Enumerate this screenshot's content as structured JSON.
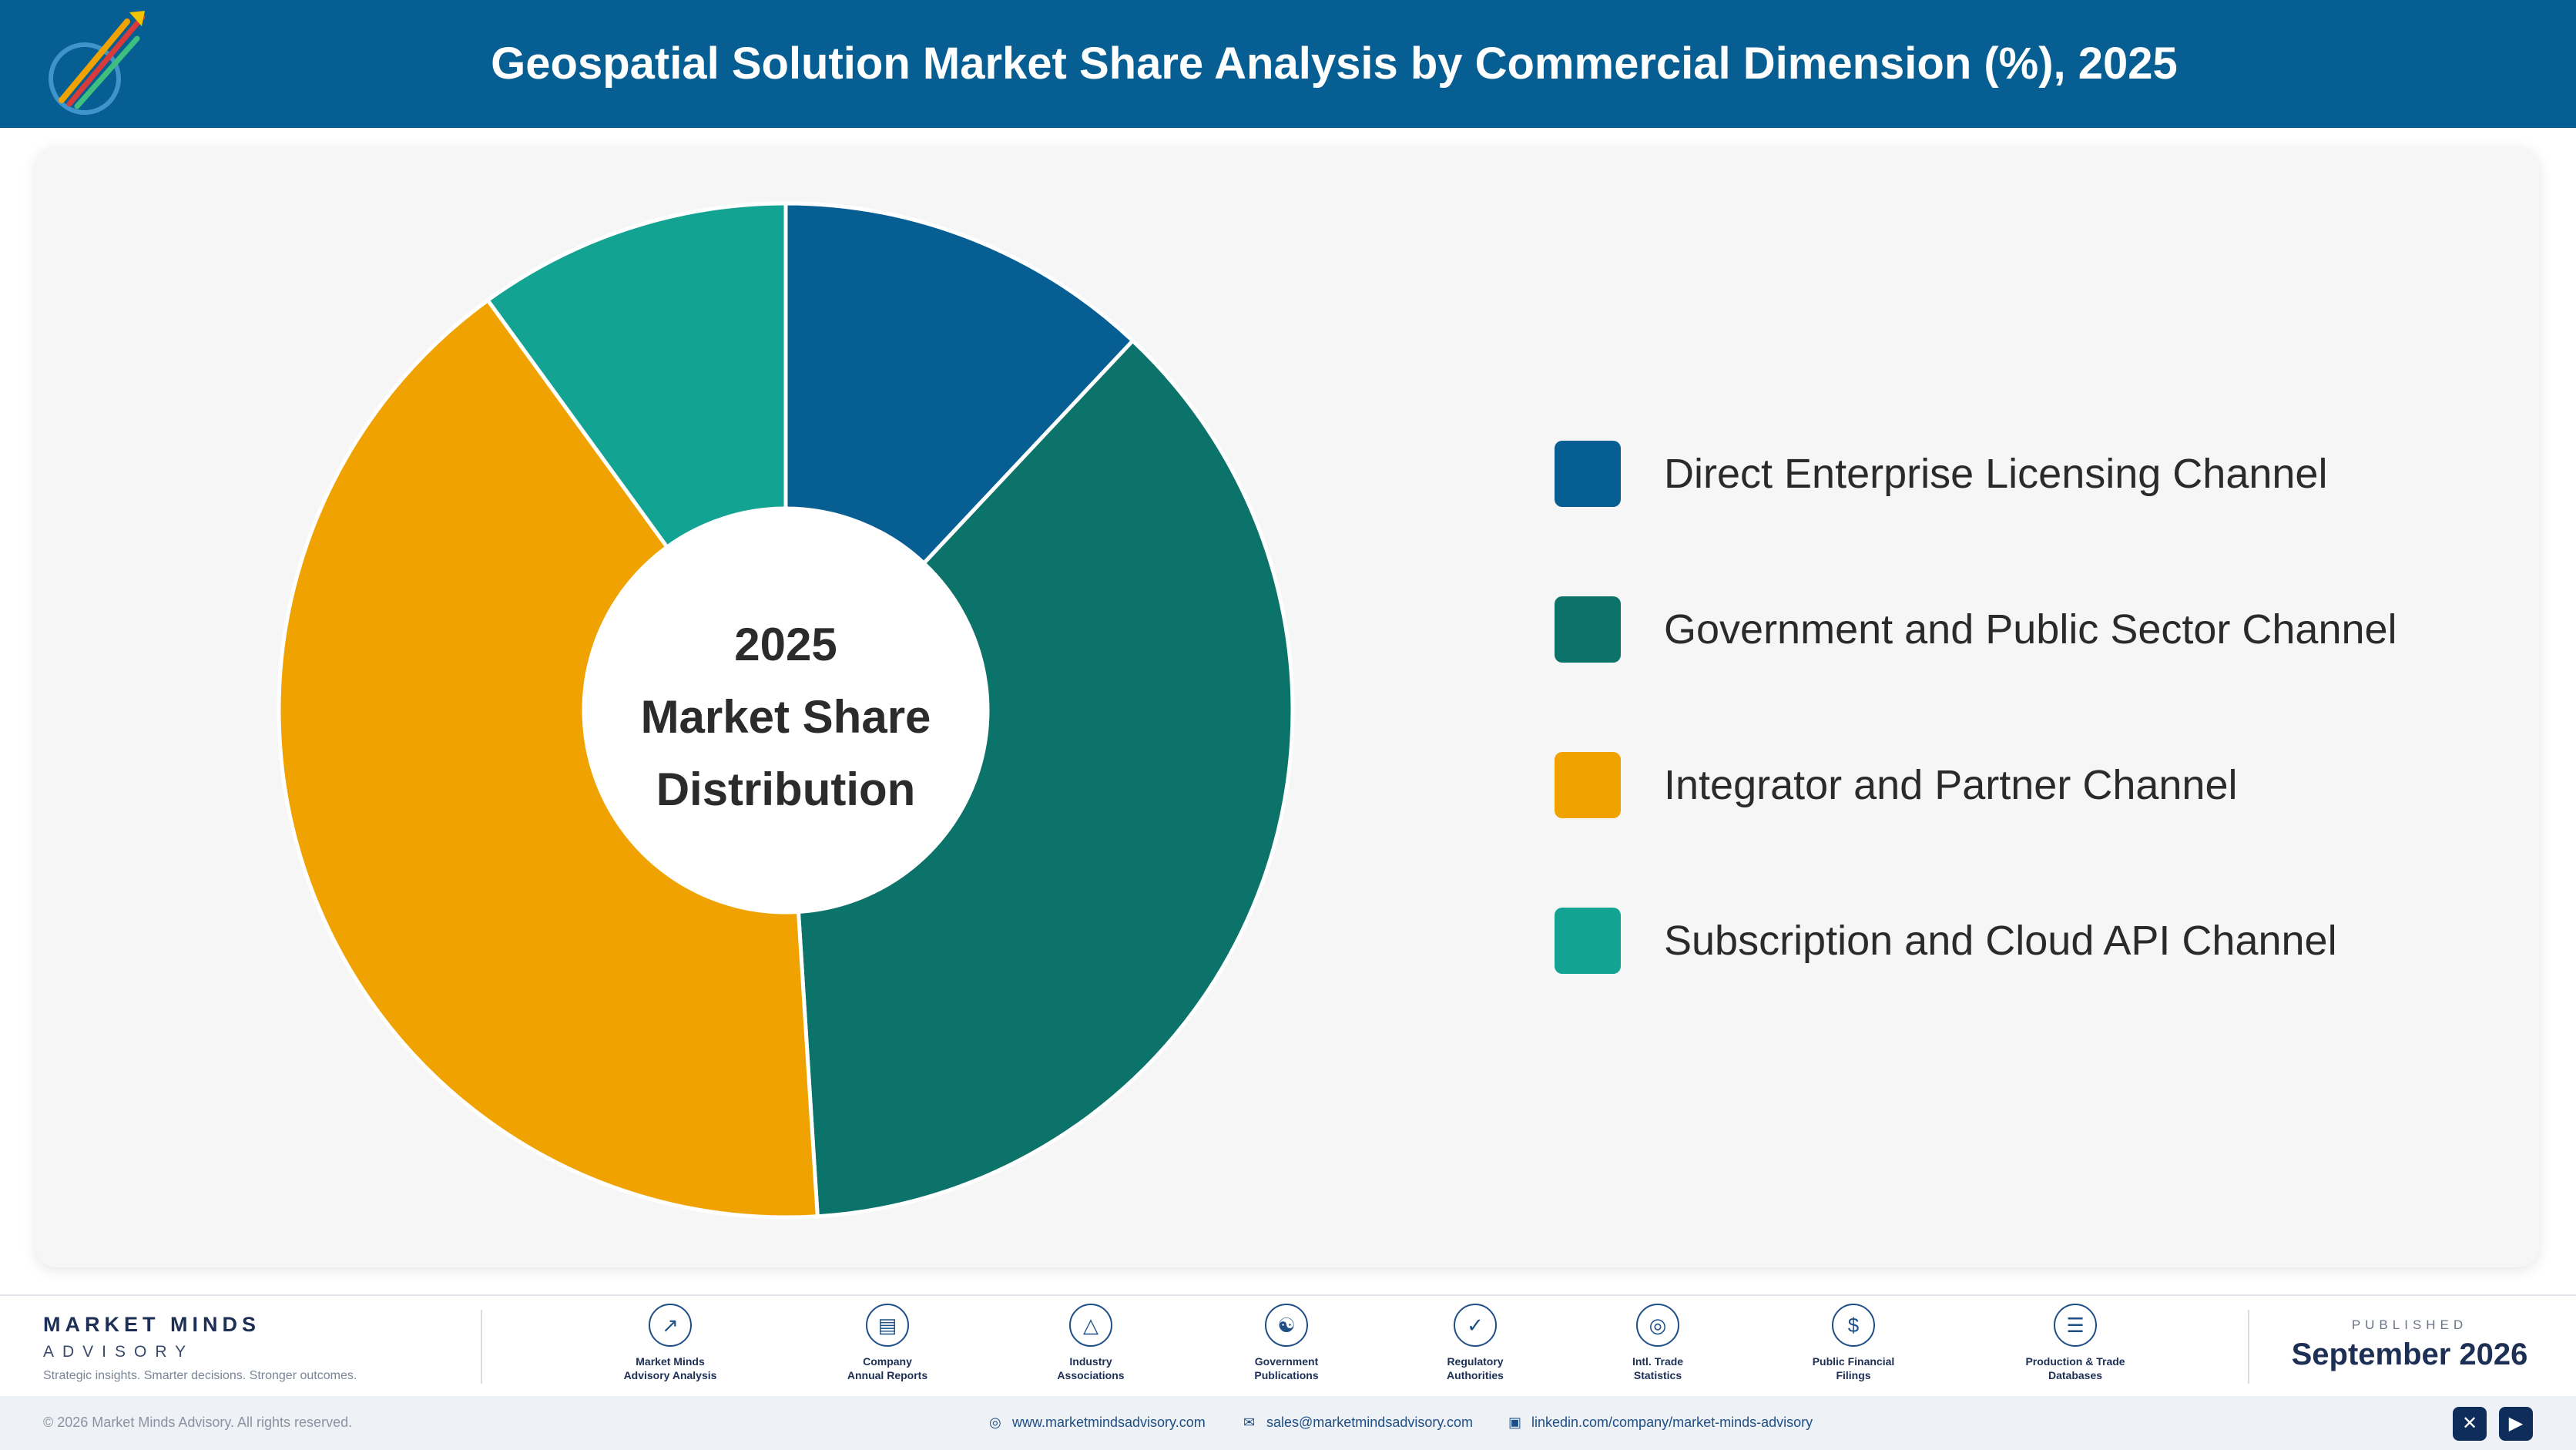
{
  "header": {
    "title": "Geospatial Solution Market Share Analysis by Commercial Dimension (%), 2025"
  },
  "chart_data": {
    "type": "pie",
    "title": "Geospatial Solution Market Share Analysis by Commercial Dimension (%), 2025",
    "center_label": [
      "2025",
      "Market Share",
      "Distribution"
    ],
    "categories": [
      "Direct Enterprise Licensing Channel",
      "Government and Public Sector Channel",
      "Integrator and Partner Channel",
      "Subscription and Cloud API Channel"
    ],
    "values": [
      12,
      37,
      41,
      10
    ],
    "colors": [
      "#075e92",
      "#0b7369",
      "#f0a300",
      "#12a393"
    ],
    "legend_position": "right"
  },
  "footer": {
    "brand_name": "MARKET MINDS",
    "brand_sub": "ADVISORY",
    "tagline": "Strategic insights. Smarter decisions. Stronger outcomes.",
    "sources": [
      {
        "label1": "Market Minds",
        "label2": "Advisory Analysis",
        "icon": "trend-icon"
      },
      {
        "label1": "Company",
        "label2": "Annual Reports",
        "icon": "document-icon"
      },
      {
        "label1": "Industry",
        "label2": "Associations",
        "icon": "network-icon"
      },
      {
        "label1": "Government",
        "label2": "Publications",
        "icon": "building-icon"
      },
      {
        "label1": "Regulatory",
        "label2": "Authorities",
        "icon": "shield-icon"
      },
      {
        "label1": "Intl. Trade",
        "label2": "Statistics",
        "icon": "globe-icon"
      },
      {
        "label1": "Public Financial",
        "label2": "Filings",
        "icon": "coin-icon"
      },
      {
        "label1": "Production & Trade",
        "label2": "Databases",
        "icon": "database-icon"
      }
    ],
    "published_label": "PUBLISHED",
    "published_date": "September 2026",
    "copyright": "© 2026 Market Minds Advisory. All rights reserved.",
    "website": "www.marketmindsadvisory.com",
    "email": "sales@marketmindsadvisory.com",
    "linkedin": "linkedin.com/company/market-minds-advisory"
  }
}
